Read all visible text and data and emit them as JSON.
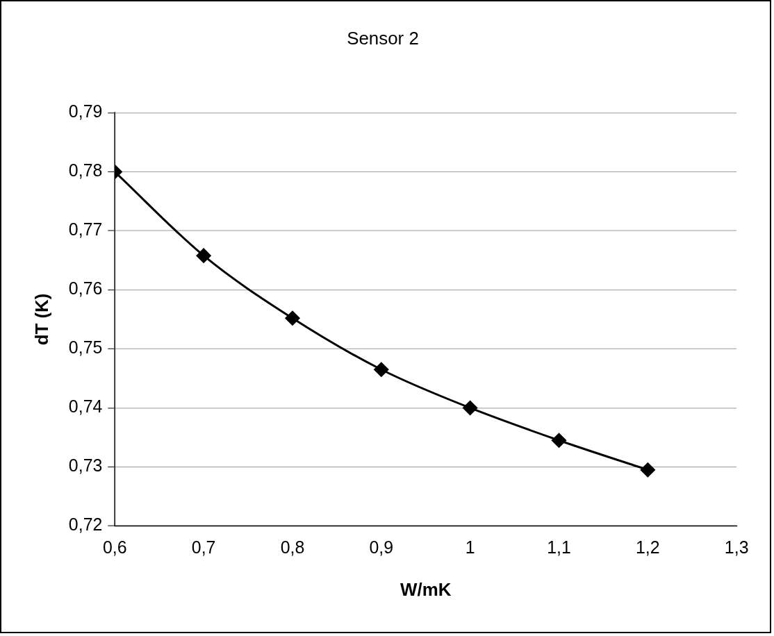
{
  "chart_data": {
    "type": "line",
    "title": "Sensor 2",
    "xlabel": "W/mK",
    "ylabel": "dT (K)",
    "x": [
      0.6,
      0.7,
      0.8,
      0.9,
      1.0,
      1.1,
      1.2
    ],
    "series": [
      {
        "color": "#000000",
        "values": [
          0.78,
          0.7658,
          0.7552,
          0.7465,
          0.74,
          0.7345,
          0.7295
        ]
      }
    ],
    "xlim": [
      0.6,
      1.3
    ],
    "xticks": [
      {
        "value": 0.6,
        "label": "0,6"
      },
      {
        "value": 0.7,
        "label": "0,7"
      },
      {
        "value": 0.8,
        "label": "0,8"
      },
      {
        "value": 0.9,
        "label": "0,9"
      },
      {
        "value": 1,
        "label": "1"
      },
      {
        "value": 1.1,
        "label": "1,1"
      },
      {
        "value": 1.2,
        "label": "1,2"
      },
      {
        "value": 1.3,
        "label": "1,3"
      }
    ],
    "ylim": [
      0.72,
      0.79
    ],
    "yticks": [
      {
        "value": 0.72,
        "label": "0,72"
      },
      {
        "value": 0.73,
        "label": "0,73"
      },
      {
        "value": 0.74,
        "label": "0,74"
      },
      {
        "value": 0.75,
        "label": "0,75"
      },
      {
        "value": 0.76,
        "label": "0,76"
      },
      {
        "value": 0.77,
        "label": "0,77"
      },
      {
        "value": 0.78,
        "label": "0,78"
      },
      {
        "value": 0.79,
        "label": "0,79"
      }
    ],
    "grid": "y",
    "legend": false,
    "marker": "diamond",
    "line_style": "solid"
  }
}
